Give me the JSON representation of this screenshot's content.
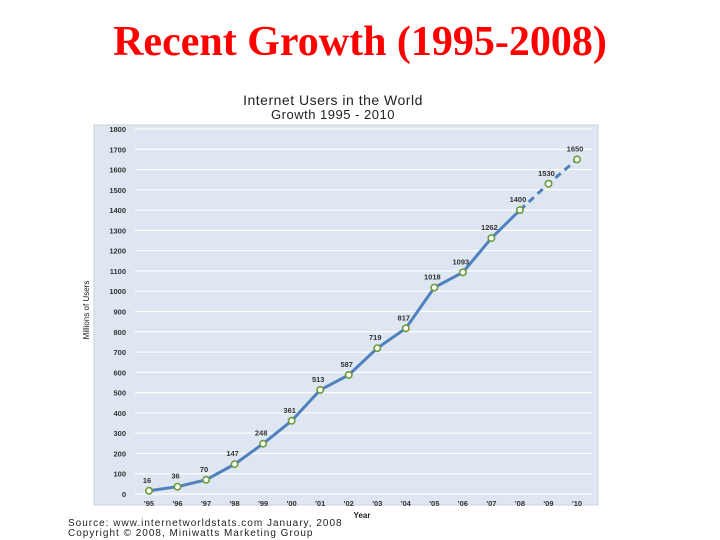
{
  "slide": {
    "title": "Recent Growth (1995-2008)"
  },
  "chart_data": {
    "type": "line",
    "title": "Internet Users in the World",
    "subtitle": "Growth 1995 - 2010",
    "xlabel": "Year",
    "ylabel": "Millions of Users",
    "ylim": [
      0,
      1800
    ],
    "yticks": [
      0,
      100,
      200,
      300,
      400,
      500,
      600,
      700,
      800,
      900,
      1000,
      1100,
      1200,
      1300,
      1400,
      1500,
      1600,
      1700,
      1800
    ],
    "grid": true,
    "categories": [
      "'95",
      "'96",
      "'97",
      "'98",
      "'99",
      "'00",
      "'01",
      "'02",
      "'03",
      "'04",
      "'05",
      "'06",
      "'07",
      "'08",
      "'09",
      "'10"
    ],
    "series": [
      {
        "values": [
          16,
          36,
          70,
          147,
          248,
          361,
          513,
          587,
          719,
          817,
          1018,
          1093,
          1262,
          1400,
          1530,
          1650
        ],
        "labels": [
          "16",
          "36",
          "70",
          "147",
          "248",
          "361",
          "513",
          "587",
          "719",
          "817",
          "1018",
          "1093",
          "1262",
          "1400",
          "1530",
          "1650"
        ],
        "projected_from_index": 13
      }
    ],
    "colors": {
      "plot_bg": "#dde6f1",
      "grid": "#ffffff",
      "line": "#4f81bd",
      "marker_fill": "#ffffff",
      "marker_stroke": "#6b9b3a",
      "title": "#222222"
    }
  },
  "footer": {
    "source": "Source: www.internetworldstats.com January, 2008",
    "copyright": "Copyright © 2008, Miniwatts Marketing Group"
  }
}
